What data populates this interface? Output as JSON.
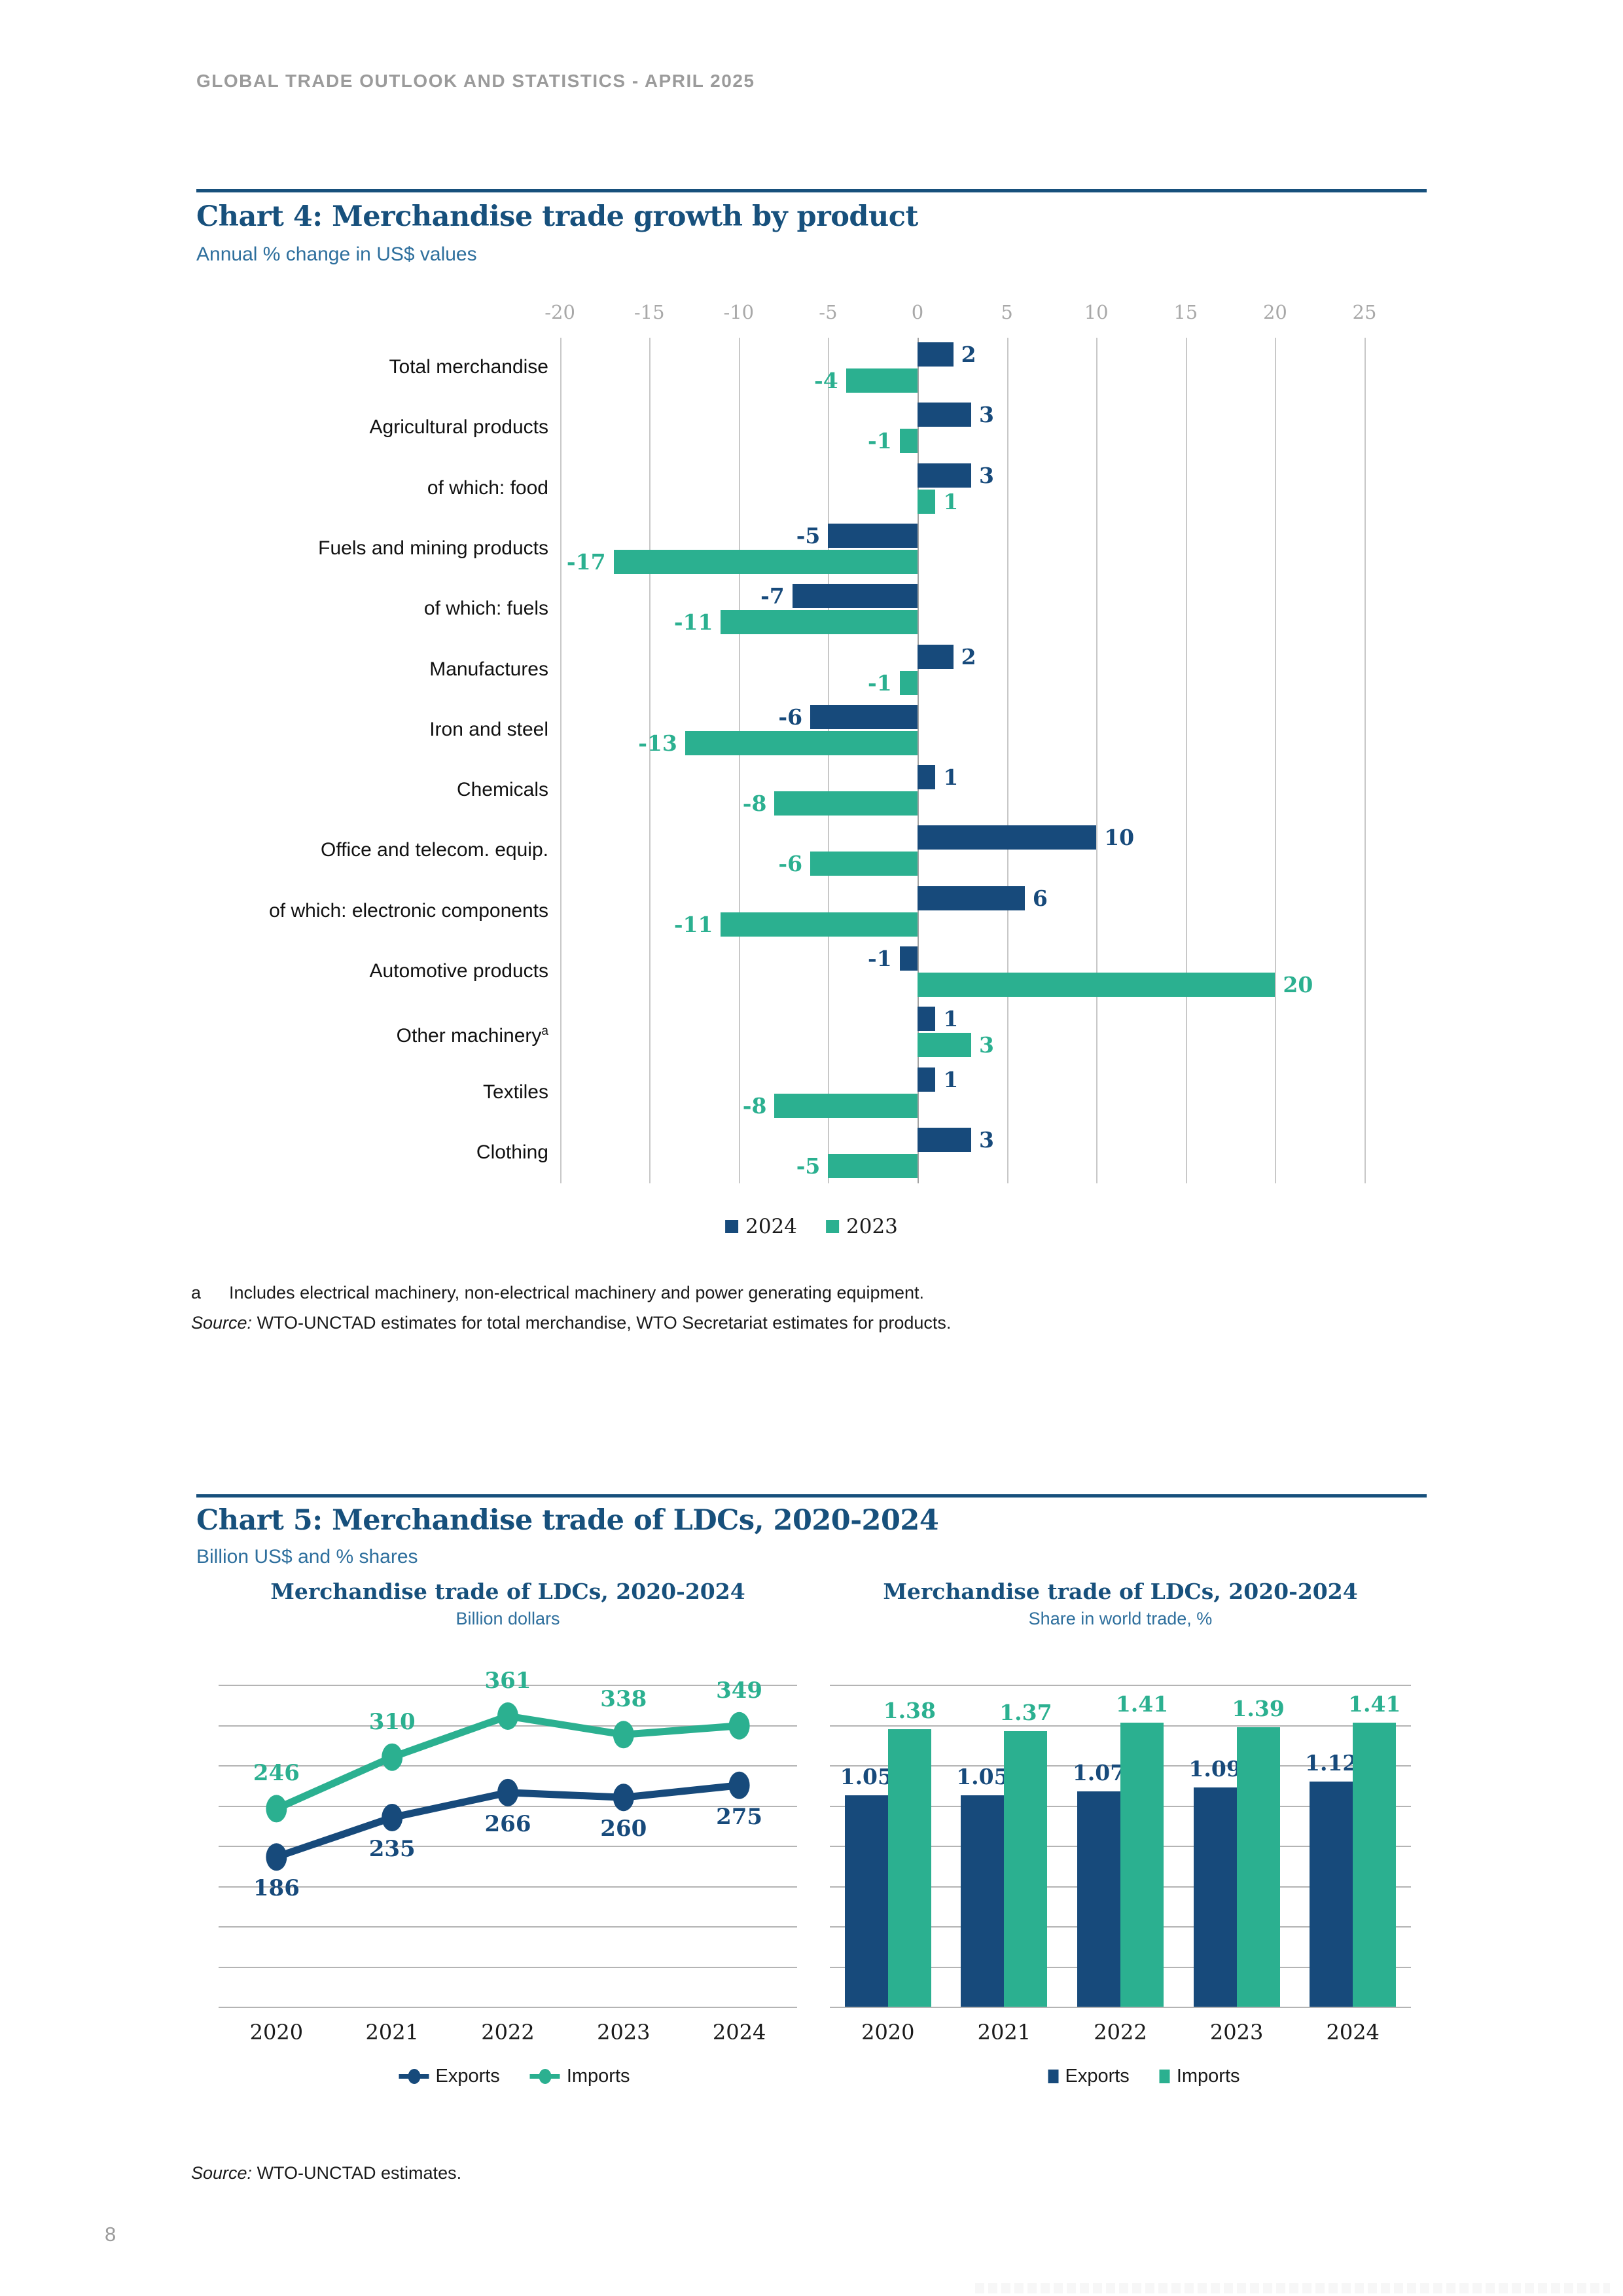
{
  "colors": {
    "navy": "#174a7b",
    "teal": "#2bb090",
    "title_blue": "#17507c",
    "subtitle_blue": "#2e6f9d",
    "axis_gray": "#a8a8a8",
    "grid_light": "#c8c8c8",
    "grid_mid": "#b4b4b4",
    "muted_gray": "#9b9b9b"
  },
  "page": {
    "header": "GLOBAL TRADE OUTLOOK AND STATISTICS - APRIL 2025",
    "page_number": "8"
  },
  "chart4": {
    "title": "Chart 4: Merchandise trade growth by product",
    "subtitle": "Annual % change in US$ values",
    "footnote_marker": "a",
    "footnote_text": "Includes electrical machinery, non-electrical machinery and power generating equipment.",
    "source_prefix": "Source:",
    "source_text": " WTO-UNCTAD estimates for total merchandise, WTO Secretariat estimates for products."
  },
  "chart5": {
    "title": "Chart 5: Merchandise trade of LDCs, 2020-2024",
    "subtitle": "Billion US$ and % shares",
    "source_prefix": "Source:",
    "source_text": " WTO-UNCTAD estimates."
  },
  "chart_data": [
    {
      "id": "merchandise-trade-growth-by-product",
      "type": "bar",
      "orientation": "horizontal",
      "title": "Chart 4: Merchandise trade growth by product",
      "ylabel": "",
      "xlabel": "Annual % change in US$ values",
      "categories": [
        "Total merchandise",
        "Agricultural products",
        "of which: food",
        "Fuels and mining products",
        "of which: fuels",
        "Manufactures",
        "Iron and steel",
        "Chemicals",
        "Office and telecom. equip.",
        "of which: electronic components",
        "Automotive products",
        "Other machinery",
        "Textiles",
        "Clothing"
      ],
      "category_footnotes": {
        "Other machinery": "a"
      },
      "series": [
        {
          "name": "2024",
          "color": "#174a7b",
          "values": [
            2,
            3,
            3,
            -5,
            -7,
            2,
            -6,
            1,
            10,
            6,
            -1,
            1,
            1,
            3
          ]
        },
        {
          "name": "2023",
          "color": "#2bb090",
          "values": [
            -4,
            -1,
            1,
            -17,
            -11,
            -1,
            -13,
            -8,
            -6,
            -11,
            20,
            3,
            -8,
            -5
          ]
        }
      ],
      "xlim": [
        -20,
        25
      ],
      "tick_step": 5,
      "grid": "vertical",
      "legend_position": "bottom"
    },
    {
      "id": "ldc-merchandise-trade-values",
      "type": "line",
      "title": "Merchandise trade of LDCs, 2020-2024",
      "subtitle": "Billion dollars",
      "x": [
        "2020",
        "2021",
        "2022",
        "2023",
        "2024"
      ],
      "series": [
        {
          "name": "Exports",
          "color": "#174a7b",
          "values": [
            186,
            235,
            266,
            260,
            275
          ],
          "label_position": "below"
        },
        {
          "name": "Imports",
          "color": "#2bb090",
          "values": [
            246,
            310,
            361,
            338,
            349
          ],
          "label_position": "above"
        }
      ],
      "ylim": [
        0,
        400
      ],
      "grid_step": 50,
      "grid": "horizontal",
      "legend_position": "bottom"
    },
    {
      "id": "ldc-merchandise-trade-shares",
      "type": "bar",
      "title": "Merchandise trade of LDCs, 2020-2024",
      "subtitle": "Share in world trade, %",
      "x": [
        "2020",
        "2021",
        "2022",
        "2023",
        "2024"
      ],
      "series": [
        {
          "name": "Exports",
          "color": "#174a7b",
          "values": [
            1.05,
            1.05,
            1.07,
            1.09,
            1.12
          ]
        },
        {
          "name": "Imports",
          "color": "#2bb090",
          "values": [
            1.38,
            1.37,
            1.41,
            1.39,
            1.41
          ]
        }
      ],
      "ylim": [
        0,
        1.6
      ],
      "grid_step": 0.2,
      "grid": "horizontal",
      "legend_position": "bottom"
    }
  ]
}
